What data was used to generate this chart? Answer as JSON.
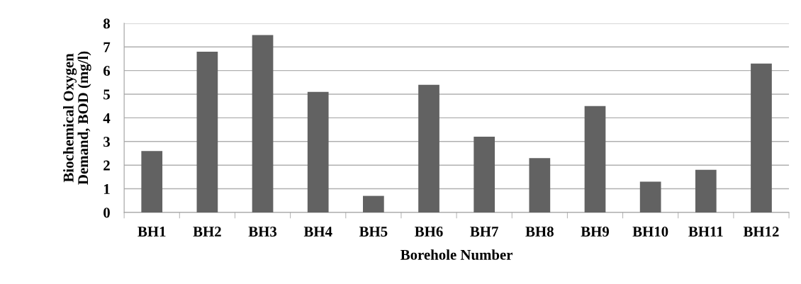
{
  "chart_data": {
    "type": "bar",
    "xlabel": "Borehole Number",
    "ylabel": "Biochemical Oxygen\nDemand, BOD (mg/l)",
    "categories": [
      "BH1",
      "BH2",
      "BH3",
      "BH4",
      "BH5",
      "BH6",
      "BH7",
      "BH8",
      "BH9",
      "BH10",
      "BH11",
      "BH12"
    ],
    "values": [
      2.6,
      6.8,
      7.5,
      5.1,
      0.7,
      5.4,
      3.2,
      2.3,
      4.5,
      1.3,
      1.8,
      6.3
    ],
    "color": "#626262",
    "ylim": [
      0,
      8
    ],
    "yticks": [
      0,
      1,
      2,
      3,
      4,
      5,
      6,
      7,
      8
    ],
    "grid": "y",
    "legend": false
  }
}
